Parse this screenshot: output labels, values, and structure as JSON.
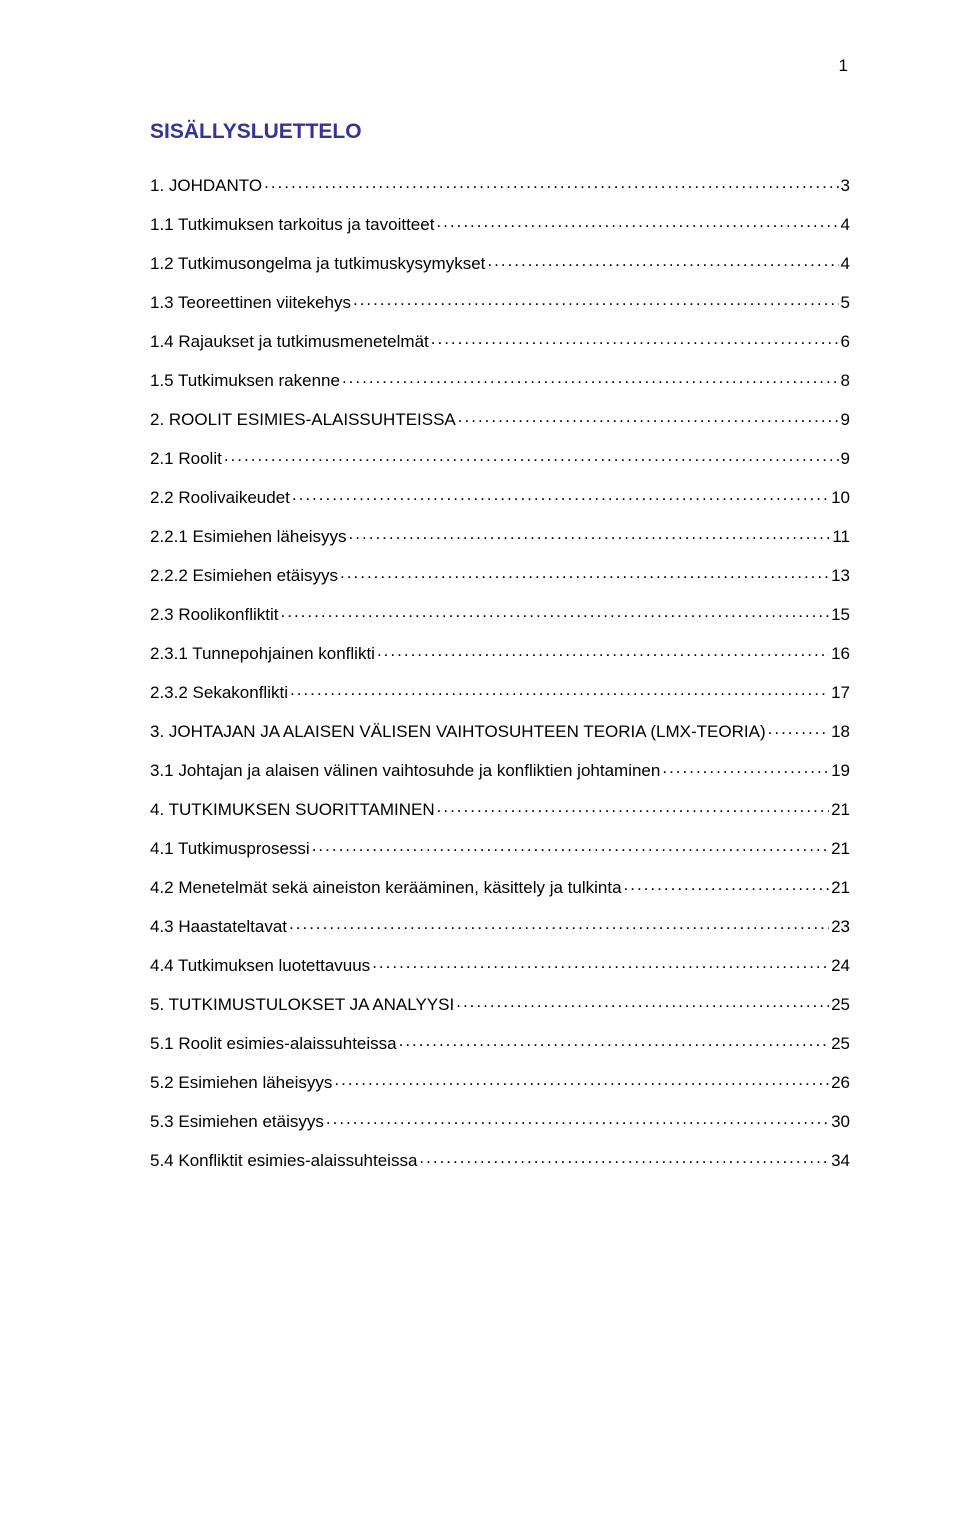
{
  "page_number": "1",
  "title": "SISÄLLYSLUETTELO",
  "text_color": "#000000",
  "title_color": "#333399",
  "background_color": "#ffffff",
  "base_fontsize": 17,
  "title_fontsize": 21,
  "toc": [
    {
      "label": "1. JOHDANTO",
      "page": "3",
      "indent": 0
    },
    {
      "label": "1.1 Tutkimuksen tarkoitus ja tavoitteet",
      "page": "4",
      "indent": 0
    },
    {
      "label": "1.2 Tutkimusongelma ja tutkimuskysymykset",
      "page": "4",
      "indent": 0
    },
    {
      "label": "1.3 Teoreettinen viitekehys",
      "page": "5",
      "indent": 0
    },
    {
      "label": "1.4 Rajaukset ja tutkimusmenetelmät",
      "page": "6",
      "indent": 0
    },
    {
      "label": "1.5 Tutkimuksen rakenne",
      "page": "8",
      "indent": 0
    },
    {
      "label": "2. ROOLIT ESIMIES-ALAISSUHTEISSA",
      "page": "9",
      "indent": 0
    },
    {
      "label": "2.1 Roolit",
      "page": "9",
      "indent": 0
    },
    {
      "label": "2.2 Roolivaikeudet",
      "page": "10",
      "indent": 0
    },
    {
      "label": "2.2.1 Esimiehen läheisyys",
      "page": "11",
      "indent": 0
    },
    {
      "label": "2.2.2 Esimiehen etäisyys",
      "page": "13",
      "indent": 0
    },
    {
      "label": "2.3 Roolikonfliktit",
      "page": "15",
      "indent": 0
    },
    {
      "label": "2.3.1 Tunnepohjainen konflikti",
      "page": "16",
      "indent": 0
    },
    {
      "label": "2.3.2 Sekakonflikti",
      "page": "17",
      "indent": 0
    },
    {
      "label": "3. JOHTAJAN JA ALAISEN VÄLISEN VAIHTOSUHTEEN TEORIA (LMX-TEORIA)",
      "page": "18",
      "indent": 0
    },
    {
      "label": "3.1 Johtajan ja alaisen välinen vaihtosuhde ja konfliktien johtaminen",
      "page": "19",
      "indent": 0
    },
    {
      "label": "4. TUTKIMUKSEN SUORITTAMINEN",
      "page": "21",
      "indent": 0
    },
    {
      "label": "4.1 Tutkimusprosessi",
      "page": "21",
      "indent": 0
    },
    {
      "label": "4.2 Menetelmät sekä aineiston kerääminen, käsittely ja tulkinta",
      "page": "21",
      "indent": 0
    },
    {
      "label": "4.3 Haastateltavat",
      "page": "23",
      "indent": 0
    },
    {
      "label": "4.4 Tutkimuksen luotettavuus",
      "page": "24",
      "indent": 0
    },
    {
      "label": "5. TUTKIMUSTULOKSET JA ANALYYSI",
      "page": "25",
      "indent": 0
    },
    {
      "label": "5.1 Roolit esimies-alaissuhteissa",
      "page": "25",
      "indent": 0
    },
    {
      "label": "5.2 Esimiehen läheisyys",
      "page": "26",
      "indent": 0
    },
    {
      "label": "5.3 Esimiehen etäisyys",
      "page": "30",
      "indent": 0
    },
    {
      "label": "5.4 Konfliktit esimies-alaissuhteissa",
      "page": "34",
      "indent": 0
    }
  ]
}
